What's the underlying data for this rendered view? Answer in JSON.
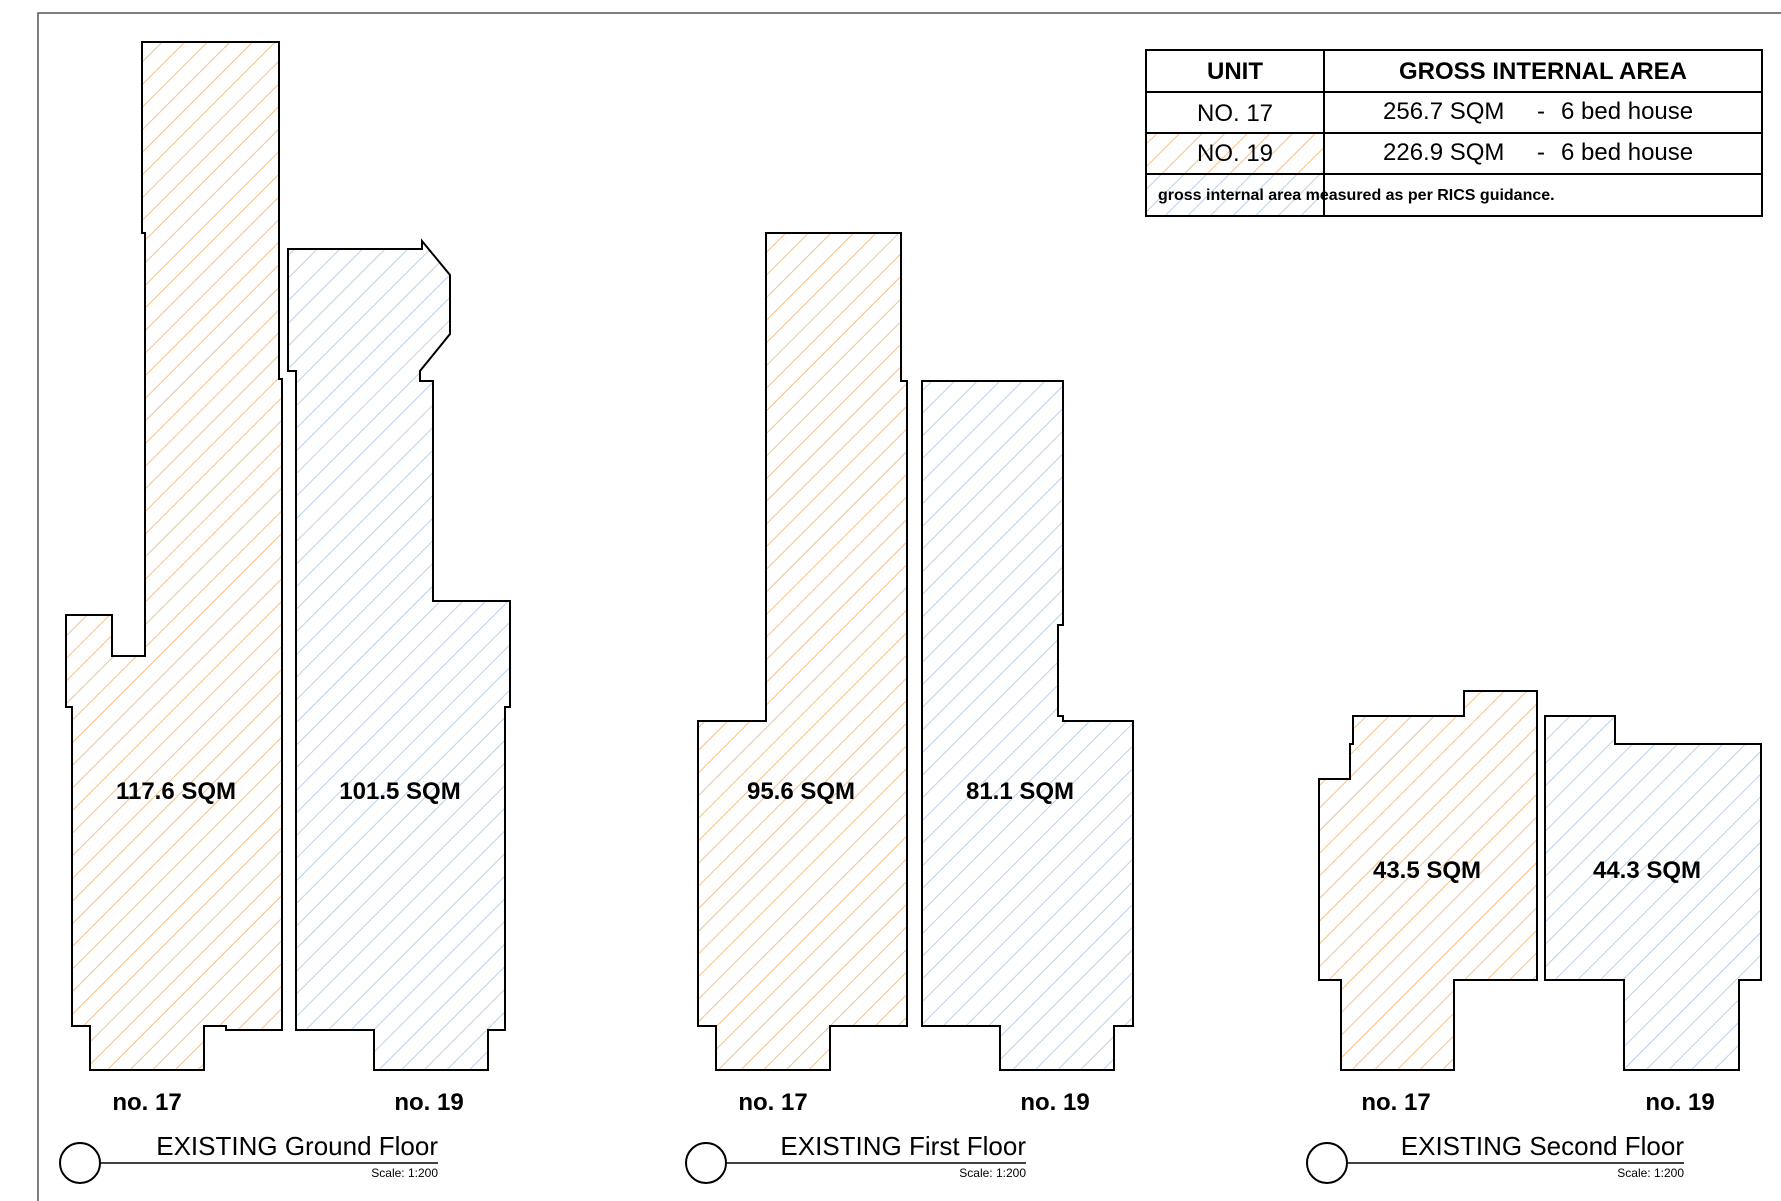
{
  "colors": {
    "no17_hatch": "#f2b36b",
    "no19_hatch": "#a9c6e6",
    "outline": "#000000"
  },
  "schedule": {
    "header_unit": "UNIT",
    "header_area": "GROSS INTERNAL AREA",
    "rows": [
      {
        "unit": "NO. 17",
        "area": "256.7 SQM",
        "sep": "-",
        "desc": "6 bed house"
      },
      {
        "unit": "NO. 19",
        "area": "226.9 SQM",
        "sep": "-",
        "desc": "6 bed house"
      }
    ],
    "note": "gross internal area measured as per RICS guidance."
  },
  "floors": [
    {
      "title": "EXISTING Ground Floor",
      "scale": "Scale: 1:200",
      "no17": {
        "label": "no. 17",
        "area": "117.6 SQM"
      },
      "no19": {
        "label": "no. 19",
        "area": "101.5 SQM"
      }
    },
    {
      "title": "EXISTING First Floor",
      "scale": "Scale: 1:200",
      "no17": {
        "label": "no. 17",
        "area": "95.6 SQM"
      },
      "no19": {
        "label": "no. 19",
        "area": "81.1 SQM"
      }
    },
    {
      "title": "EXISTING Second Floor",
      "scale": "Scale: 1:200",
      "no17": {
        "label": "no. 17",
        "area": "43.5 SQM"
      },
      "no19": {
        "label": "no. 19",
        "area": "44.3 SQM"
      }
    }
  ]
}
